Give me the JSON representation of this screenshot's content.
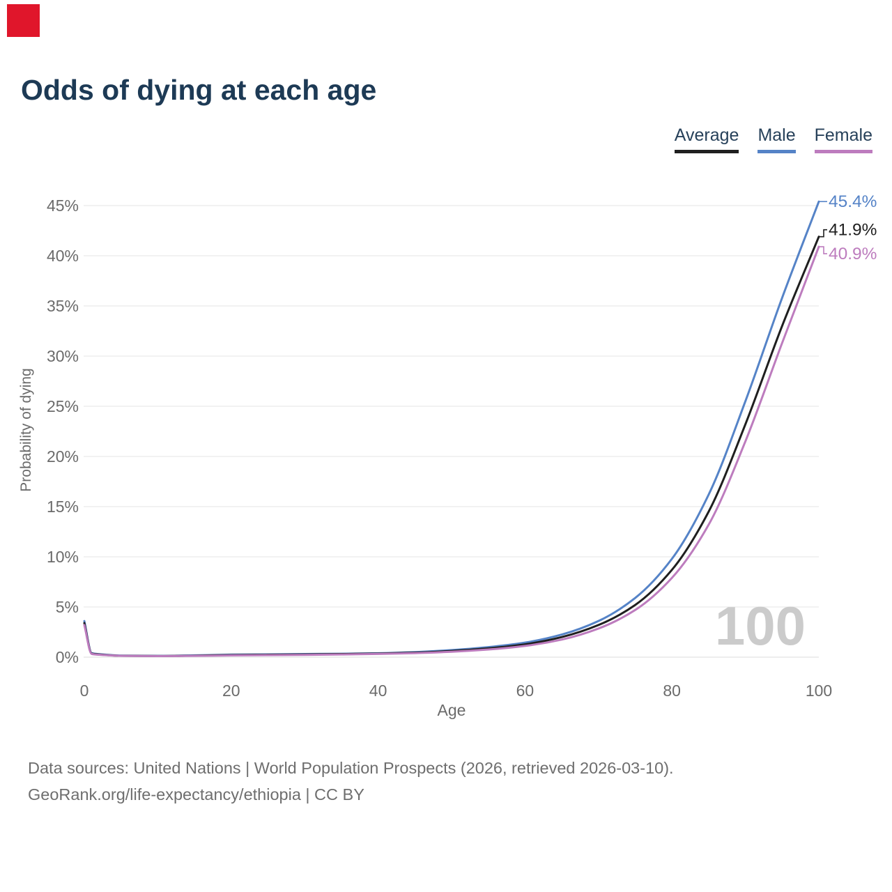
{
  "marker": {
    "color": "#e0162b"
  },
  "header": {
    "title": "Odds of dying at each age"
  },
  "legend": {
    "items": [
      {
        "label": "Average",
        "color": "#1f1f1f"
      },
      {
        "label": "Male",
        "color": "#5583c7"
      },
      {
        "label": "Female",
        "color": "#bd7cbe"
      }
    ]
  },
  "chart_data": {
    "type": "line",
    "title": "Odds of dying at each age",
    "xlabel": "Age",
    "ylabel": "Probability of dying",
    "xlim": [
      0,
      100
    ],
    "ylim": [
      0,
      45
    ],
    "xticks": [
      "0",
      "20",
      "40",
      "60",
      "80",
      "100"
    ],
    "yticks": [
      "0%",
      "5%",
      "10%",
      "15%",
      "20%",
      "25%",
      "30%",
      "35%",
      "40%",
      "45%"
    ],
    "ytick_values": [
      0,
      5,
      10,
      15,
      20,
      25,
      30,
      35,
      40,
      45
    ],
    "xtick_values": [
      0,
      20,
      40,
      60,
      80,
      100
    ],
    "grid": "horizontal",
    "legend_position": "top-right",
    "watermark": "100",
    "x": [
      0,
      1,
      2,
      5,
      10,
      15,
      20,
      25,
      30,
      35,
      40,
      45,
      50,
      55,
      60,
      65,
      70,
      75,
      80,
      85,
      90,
      95,
      100
    ],
    "series": [
      {
        "name": "Male",
        "color": "#5583c7",
        "end_label": "45.4%",
        "values": [
          3.6,
          0.4,
          0.3,
          0.16,
          0.13,
          0.18,
          0.25,
          0.28,
          0.31,
          0.34,
          0.39,
          0.5,
          0.7,
          1.0,
          1.45,
          2.25,
          3.6,
          5.9,
          9.8,
          16.2,
          25.5,
          35.8,
          45.4
        ]
      },
      {
        "name": "Average",
        "color": "#1f1f1f",
        "end_label": "41.9%",
        "values": [
          3.4,
          0.36,
          0.27,
          0.14,
          0.11,
          0.15,
          0.21,
          0.24,
          0.27,
          0.31,
          0.36,
          0.45,
          0.62,
          0.88,
          1.28,
          2.0,
          3.2,
          5.2,
          8.7,
          14.5,
          23.2,
          33.0,
          41.9
        ]
      },
      {
        "name": "Female",
        "color": "#bd7cbe",
        "end_label": "40.9%",
        "values": [
          3.2,
          0.32,
          0.24,
          0.13,
          0.1,
          0.13,
          0.17,
          0.2,
          0.23,
          0.27,
          0.32,
          0.4,
          0.54,
          0.76,
          1.12,
          1.75,
          2.85,
          4.7,
          7.9,
          13.2,
          21.5,
          31.3,
          40.9
        ]
      }
    ]
  },
  "footer": {
    "line1": "Data sources: United Nations | World Population Prospects (2026, retrieved 2026-03-10).",
    "line2": "GeoRank.org/life-expectancy/ethiopia | CC BY"
  }
}
